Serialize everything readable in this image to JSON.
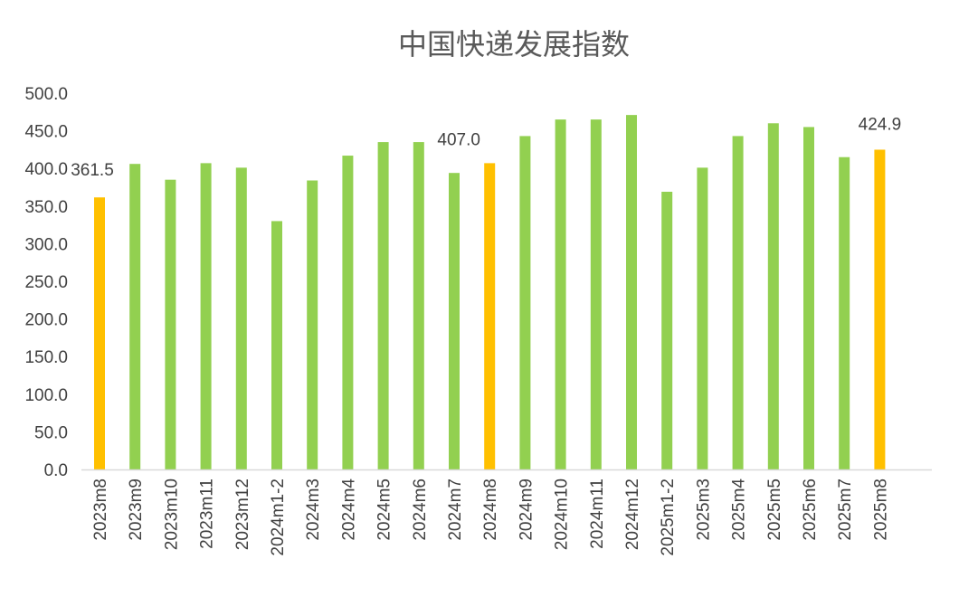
{
  "chart_data": {
    "type": "bar",
    "title": "中国快递发展指数",
    "xlabel": "",
    "ylabel": "",
    "ylim": [
      0,
      500
    ],
    "yticks": [
      "0.0",
      "50.0",
      "100.0",
      "150.0",
      "200.0",
      "250.0",
      "300.0",
      "350.0",
      "400.0",
      "450.0",
      "500.0"
    ],
    "grid": false,
    "categories": [
      "2023m8",
      "2023m9",
      "2023m10",
      "2023m11",
      "2023m12",
      "2024m1-2",
      "2024m3",
      "2024m4",
      "2024m5",
      "2024m6",
      "2024m7",
      "2024m8",
      "2024m9",
      "2024m10",
      "2024m11",
      "2024m12",
      "2025m1-2",
      "2025m3",
      "2025m4",
      "2025m5",
      "2025m6",
      "2025m7",
      "2025m8"
    ],
    "values": [
      361.5,
      406,
      385,
      407,
      401,
      330,
      384,
      417,
      435,
      435,
      394,
      407.0,
      443,
      465,
      465,
      471,
      369,
      401,
      443,
      460,
      455,
      415,
      424.9
    ],
    "highlighted": [
      0,
      11,
      22
    ],
    "data_labels": {
      "0": "361.5",
      "11": "407.0",
      "22": "424.9"
    },
    "colors": {
      "normal": "#92D050",
      "highlight": "#FFC000",
      "axis": "#D9D9D9"
    }
  }
}
